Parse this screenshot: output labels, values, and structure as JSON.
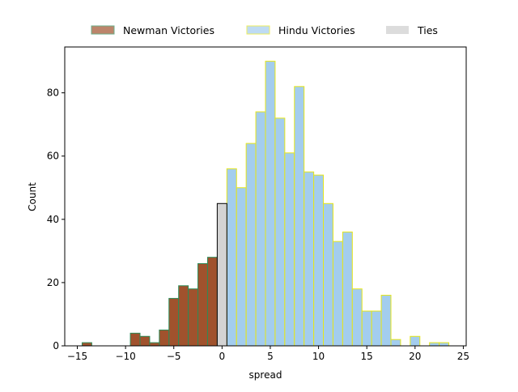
{
  "chart_data": {
    "type": "bar",
    "title": "",
    "xlabel": "spread",
    "ylabel": "Count",
    "xlim": [
      -16.3,
      25.3
    ],
    "ylim": [
      0,
      94.5
    ],
    "xticks": [
      -15,
      -10,
      -5,
      0,
      5,
      10,
      15,
      20,
      25
    ],
    "yticks": [
      0,
      20,
      40,
      60,
      80
    ],
    "bin_width": 1,
    "legend_position": "top-center",
    "series": [
      {
        "name": "Newman Victories",
        "color": "#a0522d",
        "edge_color": "#2e8b57",
        "bins": [
          {
            "x": -14,
            "count": 1
          },
          {
            "x": -9,
            "count": 4
          },
          {
            "x": -8,
            "count": 3
          },
          {
            "x": -7,
            "count": 1
          },
          {
            "x": -6,
            "count": 5
          },
          {
            "x": -5,
            "count": 15
          },
          {
            "x": -4,
            "count": 19
          },
          {
            "x": -3,
            "count": 18
          },
          {
            "x": -2,
            "count": 26
          },
          {
            "x": -1,
            "count": 28
          }
        ]
      },
      {
        "name": "Hindu Victories",
        "color": "#a3cdee",
        "edge_color": "#e6e619",
        "bins": [
          {
            "x": 1,
            "count": 56
          },
          {
            "x": 2,
            "count": 50
          },
          {
            "x": 3,
            "count": 64
          },
          {
            "x": 4,
            "count": 74
          },
          {
            "x": 5,
            "count": 90
          },
          {
            "x": 6,
            "count": 72
          },
          {
            "x": 7,
            "count": 61
          },
          {
            "x": 8,
            "count": 82
          },
          {
            "x": 9,
            "count": 55
          },
          {
            "x": 10,
            "count": 54
          },
          {
            "x": 11,
            "count": 45
          },
          {
            "x": 12,
            "count": 33
          },
          {
            "x": 13,
            "count": 36
          },
          {
            "x": 14,
            "count": 18
          },
          {
            "x": 15,
            "count": 11
          },
          {
            "x": 16,
            "count": 11
          },
          {
            "x": 17,
            "count": 16
          },
          {
            "x": 18,
            "count": 2
          },
          {
            "x": 20,
            "count": 3
          },
          {
            "x": 22,
            "count": 1
          },
          {
            "x": 23,
            "count": 1
          }
        ]
      },
      {
        "name": "Ties",
        "color": "#d3d3d3",
        "edge_color": "#000000",
        "bins": [
          {
            "x": 0,
            "count": 45
          }
        ]
      }
    ]
  }
}
